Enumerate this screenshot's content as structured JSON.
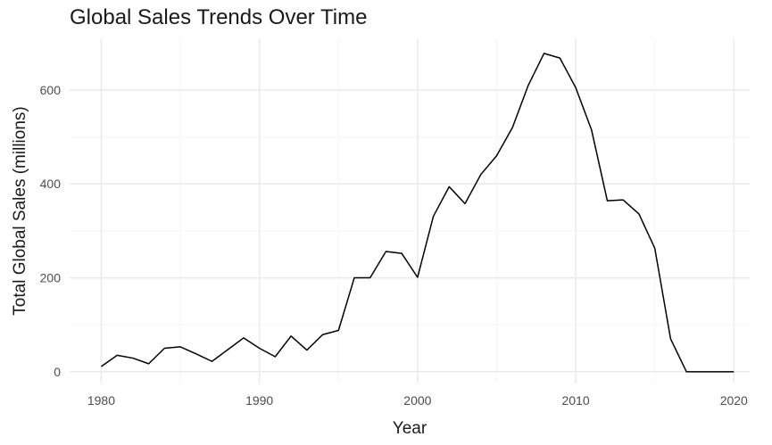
{
  "chart_data": {
    "type": "line",
    "title": "Global Sales Trends Over Time",
    "xlabel": "Year",
    "ylabel": "Total Global Sales (millions)",
    "xlim": [
      1978,
      2021
    ],
    "ylim": [
      -25,
      710
    ],
    "x_ticks": [
      1980,
      1990,
      2000,
      2010,
      2020
    ],
    "y_ticks": [
      0,
      200,
      400,
      600
    ],
    "grid": true,
    "legend": "none",
    "line_color": "#000000",
    "grid_major_color": "#ebebeb",
    "grid_minor_color": "#f5f5f5",
    "series": [
      {
        "x": [
          1980,
          1981,
          1982,
          1983,
          1984,
          1985,
          1986,
          1987,
          1988,
          1989,
          1990,
          1991,
          1992,
          1993,
          1994,
          1995,
          1996,
          1997,
          1998,
          1999,
          2000,
          2001,
          2002,
          2003,
          2004,
          2005,
          2006,
          2007,
          2008,
          2009,
          2010,
          2011,
          2012,
          2013,
          2014,
          2015,
          2016,
          2017,
          2018,
          2019,
          2020
        ],
        "y": [
          11,
          35,
          29,
          17,
          50,
          53,
          38,
          22,
          47,
          72,
          50,
          32,
          76,
          46,
          79,
          88,
          200,
          200,
          256,
          252,
          201,
          331,
          394,
          358,
          420,
          460,
          520,
          610,
          678,
          668,
          605,
          515,
          364,
          366,
          336,
          263,
          70,
          0,
          0,
          0,
          0
        ]
      }
    ]
  }
}
